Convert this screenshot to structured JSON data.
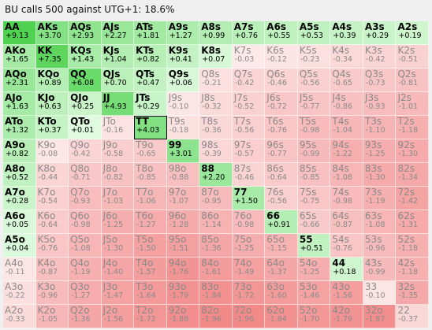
{
  "window": {
    "title": "BU calls 500 against UTG+1: 18.6%"
  },
  "matrix": {
    "rows": [
      [
        "AA|+9.13",
        "AKs|+3.70",
        "AQs|+2.93",
        "AJs|+2.27",
        "ATs|+1.81",
        "A9s|+1.27",
        "A8s|+0.99",
        "A7s|+0.76",
        "A6s|+0.55",
        "A5s|+0.53",
        "A4s|+0.39",
        "A3s|+0.29",
        "A2s|+0.19"
      ],
      [
        "AKo|+1.65",
        "KK|+7.35",
        "KQs|+1.43",
        "KJs|+1.04",
        "KTs|+0.82",
        "K9s|+0.41",
        "K8s|+0.07",
        "K7s|-0.03",
        "K6s|-0.12",
        "K5s|-0.23",
        "K4s|-0.34",
        "K3s|-0.42",
        "K2s|-0.51"
      ],
      [
        "AQo|+2.31",
        "KQo|+0.89",
        "QQ|+6.08",
        "QJs|+0.70",
        "QTs|+0.47",
        "Q9s|+0.06",
        "Q8s|-0.21",
        "Q7s|-0.42",
        "Q6s|-0.46",
        "Q5s|-0.56",
        "Q4s|-0.65",
        "Q3s|-0.73",
        "Q2s|-0.81"
      ],
      [
        "AJo|+1.63",
        "KJo|+0.63",
        "QJo|+0.25",
        "JJ|+4.93",
        "JTs|+0.29",
        "J9s|-0.10",
        "J8s|-0.32",
        "J7s|-0.52",
        "J6s|-0.72",
        "J5s|-0.77",
        "J4s|-0.86",
        "J3s|-0.93",
        "J2s|-1.01"
      ],
      [
        "ATo|+1.32",
        "KTo|+0.37",
        "QTo|+0.01",
        "JTo|-0.16",
        "TT|+4.03",
        "T9s|-0.18",
        "T8s|-0.36",
        "T7s|-0.56",
        "T6s|-0.76",
        "T5s|-0.98",
        "T4s|-1.04",
        "T3s|-1.10",
        "T2s|-1.18"
      ],
      [
        "A9o|+0.82",
        "K9o|-0.08",
        "Q9o|-0.42",
        "J9o|-0.58",
        "T9o|-0.65",
        "99|+3.01",
        "98s|-0.39",
        "97s|-0.57",
        "96s|-0.77",
        "95s|-0.99",
        "94s|-1.22",
        "93s|-1.25",
        "92s|-1.30"
      ],
      [
        "A8o|+0.52",
        "K8o|-0.44",
        "Q8o|-0.71",
        "J8o|-0.82",
        "T8o|-0.85",
        "98o|-0.88",
        "88|+2.20",
        "87s|-0.46",
        "86s|-0.64",
        "85s|-0.85",
        "84s|-1.08",
        "83s|-1.30",
        "82s|-1.34"
      ],
      [
        "A7o|+0.28",
        "K7o|-0.54",
        "Q7o|-0.93",
        "J7o|-1.03",
        "T7o|-1.06",
        "97o|-1.07",
        "87o|-0.95",
        "77|+1.50",
        "76s|-0.56",
        "75s|-0.75",
        "74s|-0.98",
        "73s|-1.19",
        "72s|-1.42"
      ],
      [
        "A6o|+0.05",
        "K6o|-0.64",
        "Q6o|-0.98",
        "J6o|-1.25",
        "T6o|-1.27",
        "96o|-1.28",
        "86o|-1.14",
        "76o|-0.98",
        "66|+0.91",
        "65s|-0.66",
        "64s|-0.87",
        "63s|-1.08",
        "62s|-1.31"
      ],
      [
        "A5o|+0.04",
        "K5o|-0.76",
        "Q5o|-1.08",
        "J5o|-1.30",
        "T5o|-1.50",
        "95o|-1.51",
        "85o|-1.36",
        "75o|-1.25",
        "65o|-1.15",
        "55|+0.51",
        "54s|-0.76",
        "53s|-0.96",
        "52s|-1.18"
      ],
      [
        "A4o|-0.11",
        "K4o|-0.87",
        "Q4o|-1.19",
        "J4o|-1.40",
        "T4o|-1.57",
        "94o|-1.76",
        "84o|-1.61",
        "74o|-1.49",
        "64o|-1.37",
        "54o|-1.25",
        "44|+0.18",
        "43s|-0.99",
        "42s|-1.18"
      ],
      [
        "A3o|-0.22",
        "K3o|-0.96",
        "Q3o|-1.27",
        "J3o|-1.47",
        "T3o|-1.64",
        "93o|-1.79",
        "83o|-1.84",
        "73o|-1.72",
        "63o|-1.60",
        "53o|-1.46",
        "43o|-1.56",
        "33|-0.10",
        "32s|-1.35"
      ],
      [
        "A2o|-0.33",
        "K2o|-1.05",
        "Q2o|-1.36",
        "J2o|-1.56",
        "T2o|-1.72",
        "92o|-1.88",
        "82o|-1.96",
        "72o|-1.96",
        "62o|-1.84",
        "52o|-1.70",
        "42o|-1.79",
        "32o|-1.87",
        "22|-0.37"
      ]
    ]
  },
  "colors": {
    "positive_high": "#4fd24f",
    "positive_low": "#e4fbe4",
    "negative_low": "#fdeaea",
    "negative_high": "#f28a8a",
    "selected_outline": "#000000"
  },
  "selected_hand": "TT"
}
